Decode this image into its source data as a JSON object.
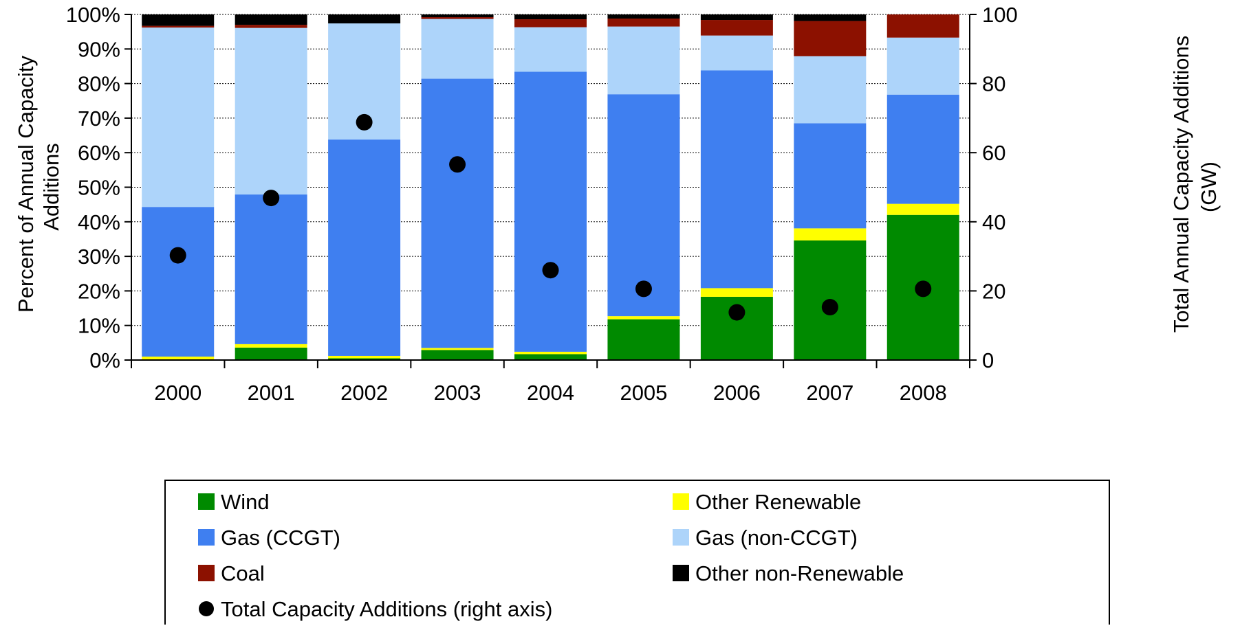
{
  "chart_data": {
    "type": "bar",
    "stacked": true,
    "categories": [
      "2000",
      "2001",
      "2002",
      "2003",
      "2004",
      "2005",
      "2006",
      "2007",
      "2008"
    ],
    "series": [
      {
        "name": "Wind",
        "color": "#008A00",
        "values": [
          0.2,
          3.6,
          0.5,
          2.9,
          1.7,
          11.8,
          18.3,
          34.6,
          42.0
        ]
      },
      {
        "name": "Other Renewable",
        "color": "#FFFF00",
        "values": [
          0.8,
          1.0,
          0.7,
          0.6,
          0.7,
          0.9,
          2.5,
          3.5,
          3.2
        ]
      },
      {
        "name": "Gas (CCGT)",
        "color": "#3F7FF0",
        "values": [
          43.3,
          43.3,
          62.6,
          77.9,
          81.0,
          64.2,
          63.0,
          30.4,
          31.6
        ]
      },
      {
        "name": "Gas (non-CCGT)",
        "color": "#ADD4FA",
        "values": [
          51.9,
          48.2,
          33.6,
          17.3,
          12.9,
          19.6,
          10.1,
          19.4,
          16.5
        ]
      },
      {
        "name": "Coal",
        "color": "#8C1100",
        "values": [
          0.5,
          0.9,
          0.0,
          0.5,
          2.3,
          2.3,
          4.5,
          10.2,
          6.7
        ]
      },
      {
        "name": "Other non-Renewable",
        "color": "#000000",
        "values": [
          3.3,
          3.0,
          2.6,
          0.8,
          1.4,
          1.2,
          1.6,
          1.9,
          0.0
        ]
      }
    ],
    "points_series": {
      "name": "Total Capacity Additions (right axis)",
      "color": "#000000",
      "values": [
        30.3,
        46.9,
        68.8,
        56.6,
        26.0,
        20.6,
        13.8,
        15.3,
        20.6
      ]
    },
    "ylabel": "Percent of Annual Capacity Additions",
    "ylim": [
      0,
      100
    ],
    "y_ticks": [
      "0%",
      "10%",
      "20%",
      "30%",
      "40%",
      "50%",
      "60%",
      "70%",
      "80%",
      "90%",
      "100%"
    ],
    "y2label": "Total Annual Capacity Additions (GW)",
    "y2lim": [
      0,
      100
    ],
    "y2_ticks": [
      "0",
      "20",
      "40",
      "60",
      "80",
      "100"
    ],
    "grid": true,
    "legend_position": "bottom"
  },
  "axes": {
    "ylabel_line1": "Percent of Annual Capacity",
    "ylabel_line2": "Additions",
    "y2label_line1": "Total Annual Capacity Additions",
    "y2label_line2": "(GW)"
  }
}
